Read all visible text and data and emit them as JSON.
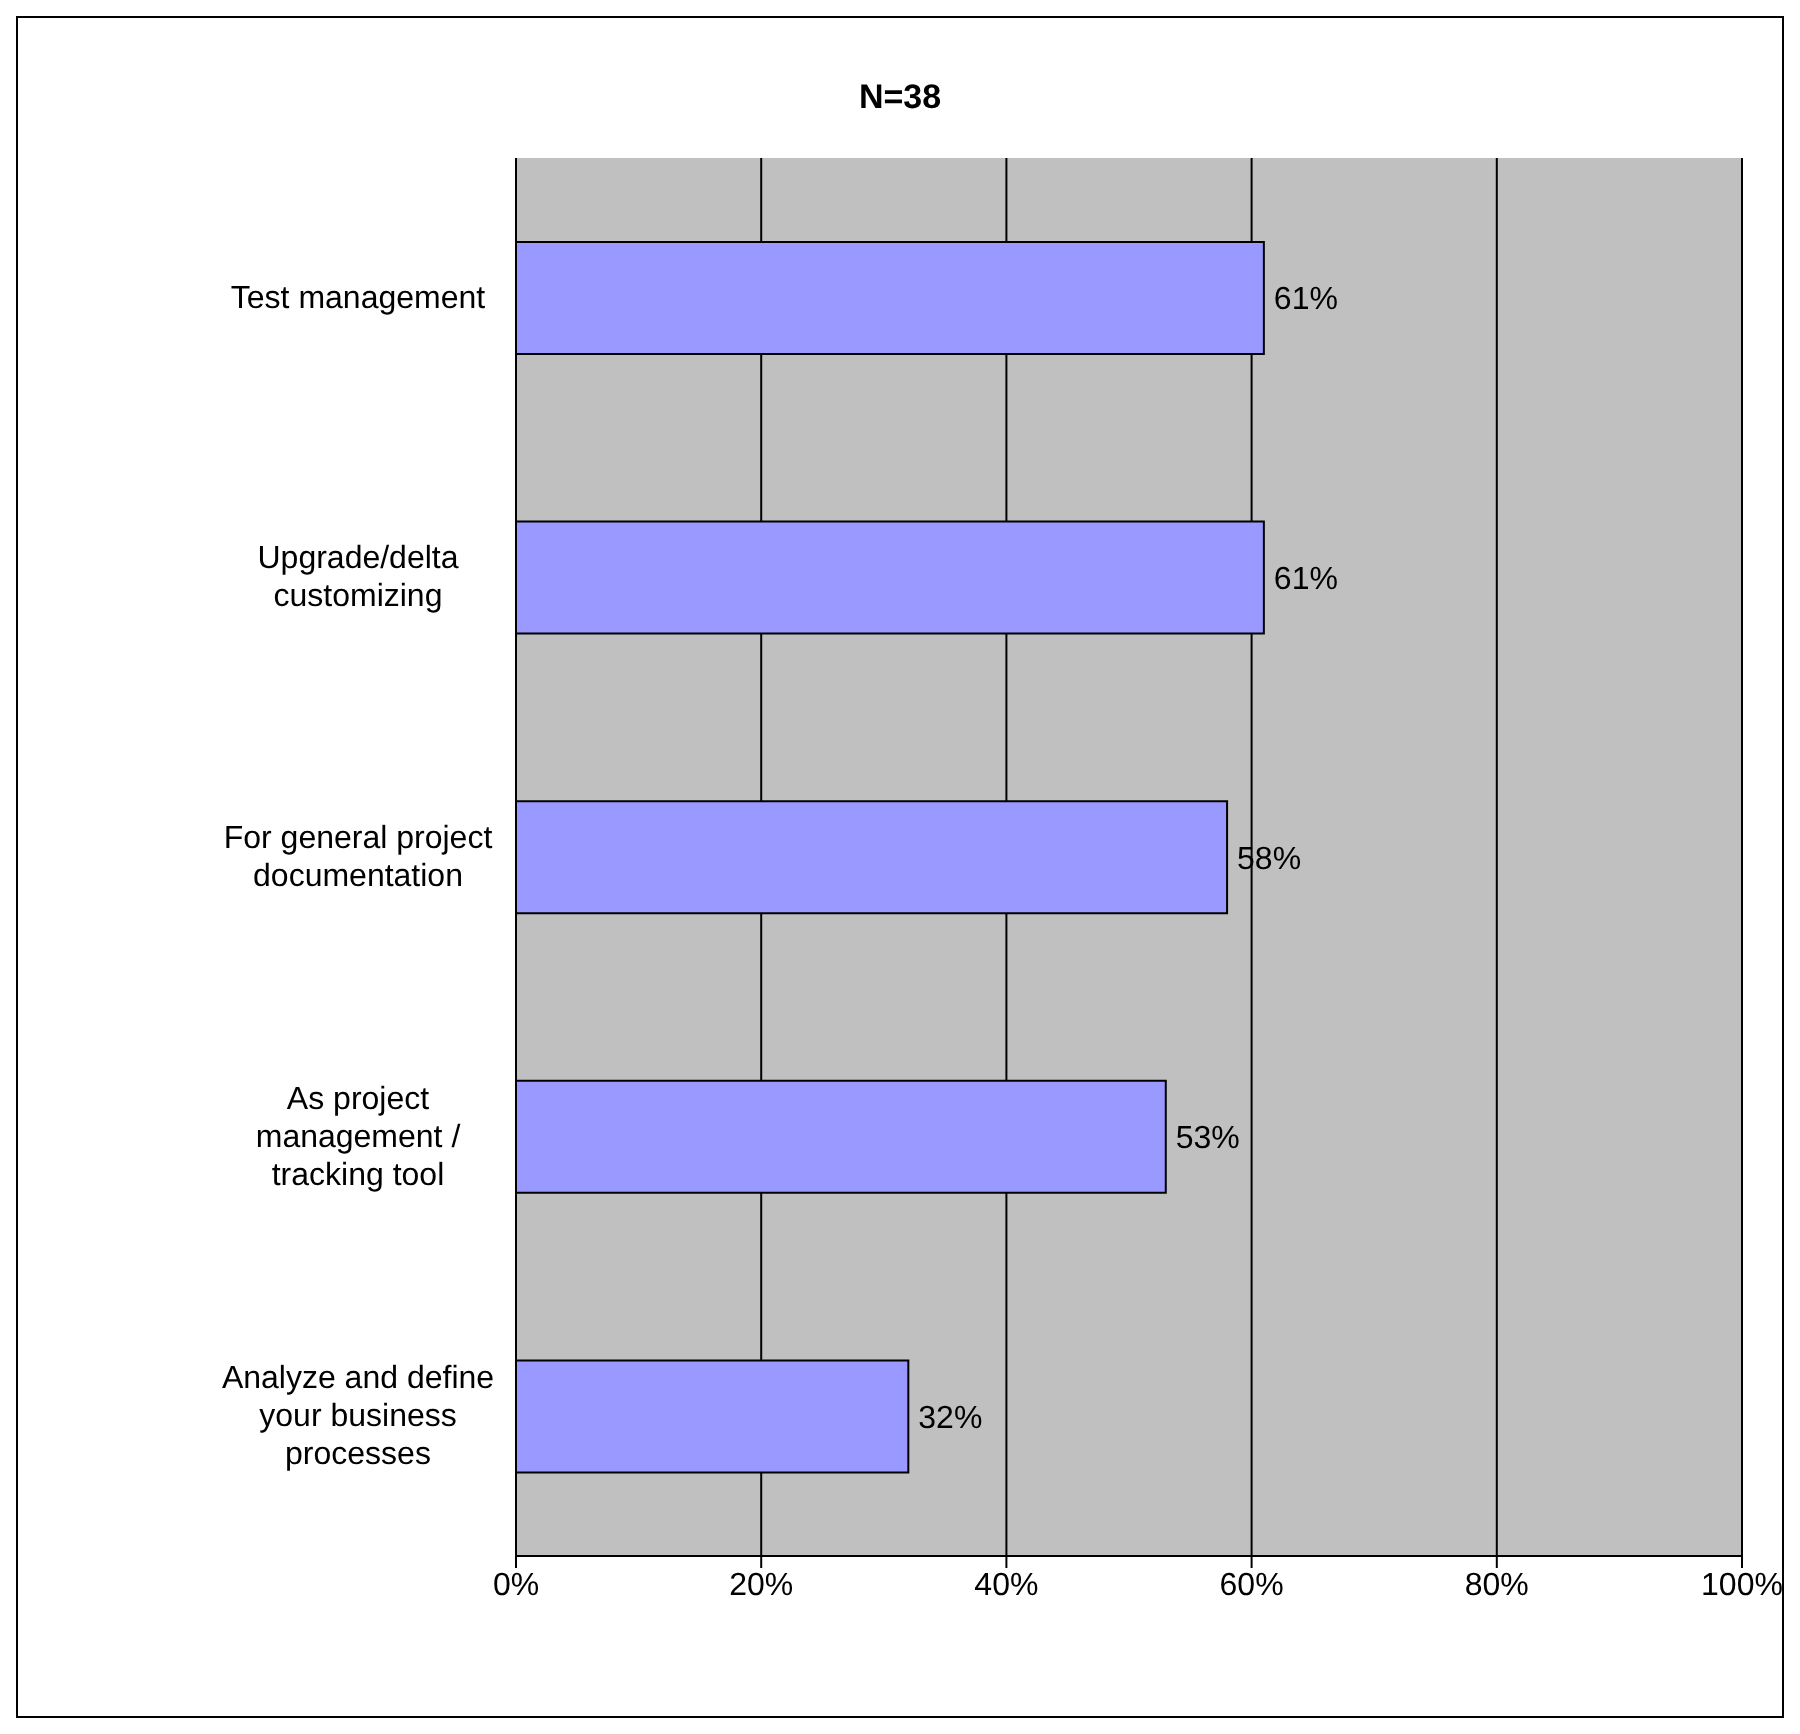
{
  "chart_data": {
    "type": "bar",
    "orientation": "horizontal",
    "title": "N=38",
    "categories": [
      "Test management",
      "Upgrade/delta customizing",
      "For general project documentation",
      "As project management / tracking tool",
      "Analyze and define your business processes"
    ],
    "values": [
      61,
      61,
      58,
      53,
      32
    ],
    "value_labels": [
      "61%",
      "61%",
      "58%",
      "53%",
      "32%"
    ],
    "color": "#9999ff",
    "xlim": [
      0,
      100
    ],
    "xticks": [
      {
        "value": 0,
        "label": "0%"
      },
      {
        "value": 20,
        "label": "20%"
      },
      {
        "value": 40,
        "label": "40%"
      },
      {
        "value": 60,
        "label": "60%"
      },
      {
        "value": 80,
        "label": "80%"
      },
      {
        "value": 100,
        "label": "100%"
      }
    ],
    "grid": "x",
    "legend": false
  }
}
